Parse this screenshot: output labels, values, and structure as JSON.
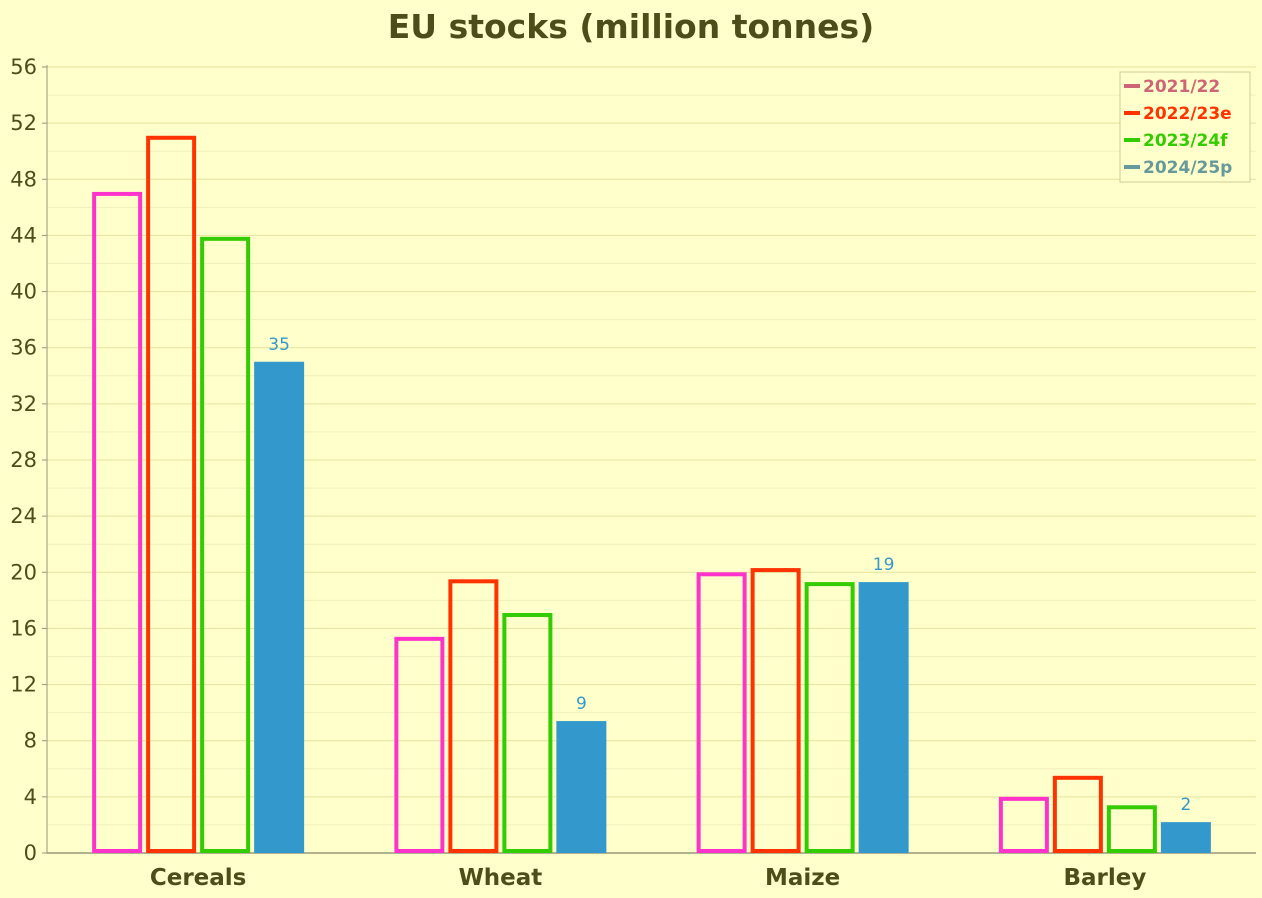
{
  "chart_data": {
    "type": "bar",
    "title": "EU stocks (million tonnes)",
    "xlabel": "",
    "ylabel": "",
    "categories": [
      "Cereals",
      "Wheat",
      "Maize",
      "Barley"
    ],
    "ylim": [
      0,
      56
    ],
    "yticks": [
      0,
      4,
      8,
      12,
      16,
      20,
      24,
      28,
      32,
      36,
      40,
      44,
      48,
      52,
      56
    ],
    "grid": true,
    "legend_position": "top-right",
    "series": [
      {
        "name": "2021/22",
        "values": [
          47.1,
          15.4,
          20.0,
          4.0
        ],
        "color": "#ff33cc",
        "legend_color": "#cc6677",
        "style": "outline"
      },
      {
        "name": "2022/23e",
        "values": [
          51.1,
          19.5,
          20.3,
          5.5
        ],
        "color": "#ff3300",
        "legend_color": "#ff3300",
        "style": "outline"
      },
      {
        "name": "2023/24f",
        "values": [
          43.9,
          17.1,
          19.3,
          3.4
        ],
        "color": "#33cc00",
        "legend_color": "#33cc00",
        "style": "outline"
      },
      {
        "name": "2024/25p",
        "values": [
          35.0,
          9.4,
          19.3,
          2.2
        ],
        "color": "#3399cc",
        "legend_color": "#669999",
        "style": "filled",
        "data_labels": [
          "35",
          "9",
          "19",
          "2"
        ]
      }
    ],
    "colors": {
      "background": "#ffffcc",
      "text": "#4d4d1a",
      "grid": "#e6e6a0",
      "axis": "#99997a"
    }
  }
}
